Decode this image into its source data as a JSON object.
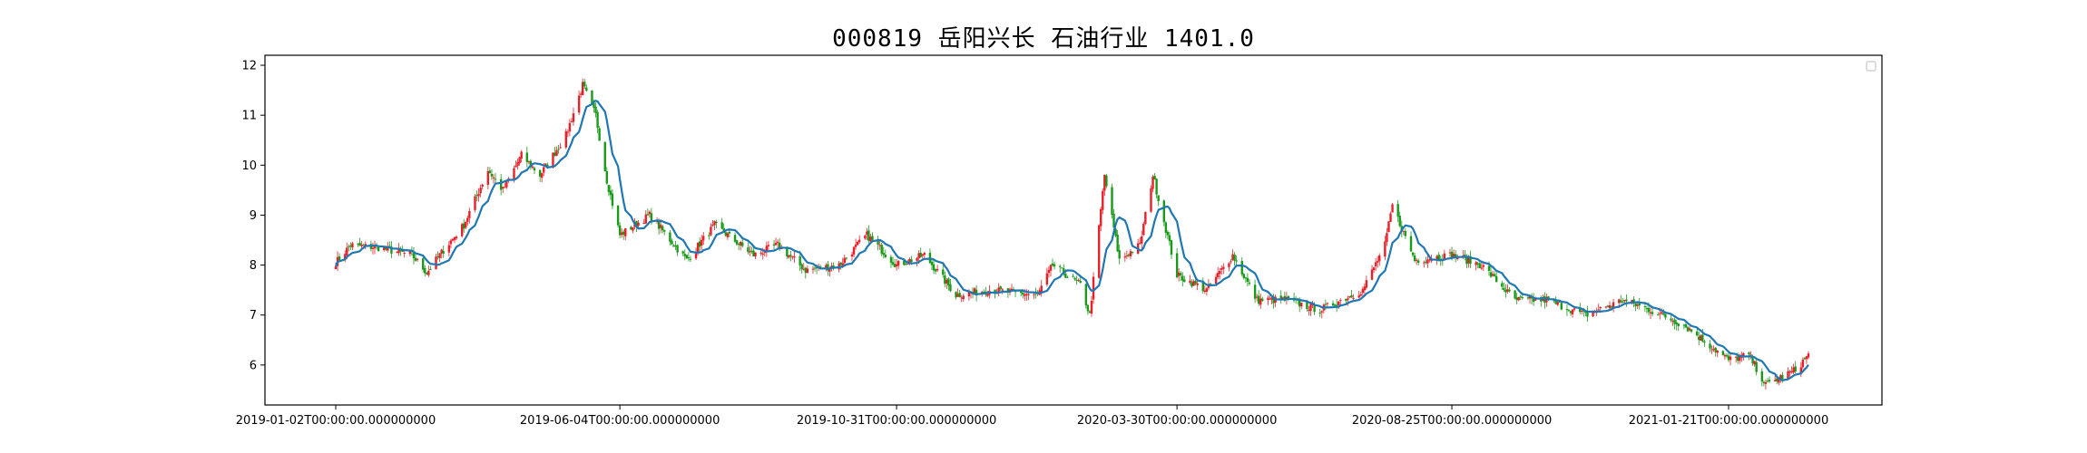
{
  "chart_data": {
    "type": "candlestick",
    "title": "000819 岳阳兴长 石油行业 1401.0",
    "xlabel": "",
    "ylabel": "",
    "ylim": [
      5.2,
      12.2
    ],
    "yticks": [
      6,
      7,
      8,
      9,
      10,
      11,
      12
    ],
    "x_range": [
      "2019-01-02",
      "2021-03-05"
    ],
    "xticks": [
      {
        "date": "2019-01-02",
        "label": "2019-01-02T00:00:00.000000000"
      },
      {
        "date": "2019-06-04",
        "label": "2019-06-04T00:00:00.000000000"
      },
      {
        "date": "2019-10-31",
        "label": "2019-10-31T00:00:00.000000000"
      },
      {
        "date": "2020-03-30",
        "label": "2020-03-30T00:00:00.000000000"
      },
      {
        "date": "2020-08-25",
        "label": "2020-08-25T00:00:00.000000000"
      },
      {
        "date": "2021-01-21",
        "label": "2021-01-21T00:00:00.000000000"
      }
    ],
    "up_color": "#e8202a",
    "down_color": "#1a9a1a",
    "ma_color": "#1f77b4",
    "legend": "top-right",
    "grid": false,
    "close_anchors": [
      [
        "2019-01-02",
        8.05
      ],
      [
        "2019-01-10",
        8.4
      ],
      [
        "2019-01-25",
        8.35
      ],
      [
        "2019-02-12",
        8.2
      ],
      [
        "2019-02-20",
        7.85
      ],
      [
        "2019-03-01",
        8.3
      ],
      [
        "2019-03-12",
        8.8
      ],
      [
        "2019-03-25",
        9.9
      ],
      [
        "2019-04-02",
        9.5
      ],
      [
        "2019-04-12",
        10.2
      ],
      [
        "2019-04-22",
        9.8
      ],
      [
        "2019-05-06",
        10.6
      ],
      [
        "2019-05-15",
        11.6
      ],
      [
        "2019-05-22",
        11.0
      ],
      [
        "2019-05-28",
        9.7
      ],
      [
        "2019-06-04",
        8.6
      ],
      [
        "2019-06-20",
        9.0
      ],
      [
        "2019-07-10",
        8.1
      ],
      [
        "2019-07-25",
        8.8
      ],
      [
        "2019-08-15",
        8.2
      ],
      [
        "2019-08-28",
        8.4
      ],
      [
        "2019-09-12",
        7.9
      ],
      [
        "2019-09-30",
        8.0
      ],
      [
        "2019-10-15",
        8.6
      ],
      [
        "2019-10-31",
        8.0
      ],
      [
        "2019-11-15",
        8.2
      ],
      [
        "2019-12-02",
        7.4
      ],
      [
        "2019-12-20",
        7.5
      ],
      [
        "2020-01-15",
        7.4
      ],
      [
        "2020-01-23",
        8.0
      ],
      [
        "2020-02-07",
        7.6
      ],
      [
        "2020-02-12",
        7.0
      ],
      [
        "2020-02-20",
        9.8
      ],
      [
        "2020-02-28",
        8.1
      ],
      [
        "2020-03-10",
        8.4
      ],
      [
        "2020-03-17",
        9.8
      ],
      [
        "2020-03-30",
        7.8
      ],
      [
        "2020-04-15",
        7.5
      ],
      [
        "2020-04-29",
        8.2
      ],
      [
        "2020-05-12",
        7.3
      ],
      [
        "2020-05-28",
        7.3
      ],
      [
        "2020-06-15",
        7.1
      ],
      [
        "2020-07-08",
        7.5
      ],
      [
        "2020-07-20",
        8.4
      ],
      [
        "2020-07-24",
        9.2
      ],
      [
        "2020-08-05",
        8.1
      ],
      [
        "2020-08-25",
        8.2
      ],
      [
        "2020-09-10",
        8.0
      ],
      [
        "2020-09-28",
        7.3
      ],
      [
        "2020-10-15",
        7.3
      ],
      [
        "2020-11-05",
        7.0
      ],
      [
        "2020-11-25",
        7.3
      ],
      [
        "2020-12-10",
        7.1
      ],
      [
        "2020-12-28",
        6.8
      ],
      [
        "2021-01-21",
        6.1
      ],
      [
        "2021-02-01",
        6.2
      ],
      [
        "2021-02-10",
        5.6
      ],
      [
        "2021-02-26",
        5.9
      ],
      [
        "2021-03-05",
        6.2
      ]
    ]
  }
}
